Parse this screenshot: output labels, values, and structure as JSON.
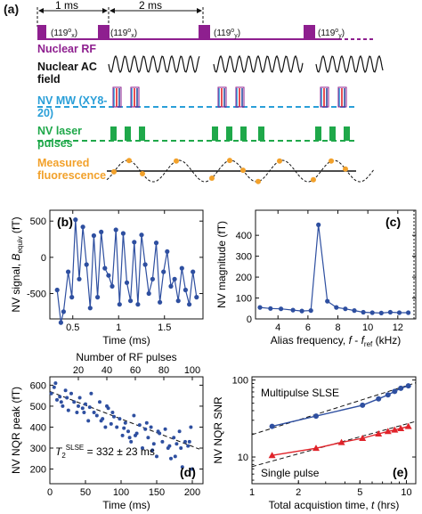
{
  "panel_a": {
    "label": "(a)",
    "timing": {
      "left": "1 ms",
      "right": "2 ms"
    },
    "pulse_tag": "(119",
    "pulse_tag_sub_x": "x",
    "pulse_tag_sub_y": "y",
    "pulse_tag_deg": "o",
    "rows": [
      {
        "label": "Nuclear RF",
        "color": "#8e1f8f"
      },
      {
        "label": "Nuclear AC field",
        "color": "#111111"
      },
      {
        "label": "NV MW (XY8-20)",
        "color": "#2a9fd8"
      },
      {
        "label": "NV laser pulses",
        "color": "#1fa84a"
      },
      {
        "label": "Measured fluorescence",
        "color": "#f2a12b"
      }
    ]
  },
  "chart_data": [
    {
      "id": "b",
      "type": "line",
      "panel_label": "(b)",
      "xlabel": "Time (ms)",
      "ylabel": "NV signal, B_equiv (fT)",
      "xlim": [
        0.25,
        1.92
      ],
      "ylim": [
        -850,
        650
      ],
      "xticks": [
        0.5,
        1,
        1.5
      ],
      "xtick_labels": [
        "0.5",
        "1",
        "1.5"
      ],
      "yticks": [
        -500,
        0,
        500
      ],
      "ytick_labels": [
        "-500",
        "0",
        "500"
      ],
      "color": "#2e4fa0",
      "x": [
        0.33,
        0.37,
        0.4,
        0.45,
        0.49,
        0.53,
        0.57,
        0.61,
        0.65,
        0.69,
        0.73,
        0.77,
        0.81,
        0.85,
        0.89,
        0.93,
        0.97,
        1.01,
        1.05,
        1.09,
        1.13,
        1.17,
        1.21,
        1.25,
        1.29,
        1.33,
        1.37,
        1.41,
        1.45,
        1.49,
        1.53,
        1.57,
        1.61,
        1.65,
        1.69,
        1.73,
        1.77,
        1.81,
        1.85
      ],
      "y": [
        -450,
        -900,
        -750,
        -200,
        -550,
        520,
        -300,
        420,
        -100,
        -700,
        300,
        -550,
        350,
        -150,
        -250,
        -400,
        380,
        -650,
        330,
        -350,
        -600,
        210,
        -650,
        310,
        -100,
        -500,
        -300,
        200,
        -620,
        -200,
        80,
        -400,
        -300,
        -600,
        -150,
        -450,
        -650,
        -200,
        -550
      ]
    },
    {
      "id": "c",
      "type": "line",
      "panel_label": "(c)",
      "xlabel": "Alias frequency, f - f_ref (kHz)",
      "ylabel": "NV magnitude (fT)",
      "xlim": [
        2.5,
        13.2
      ],
      "ylim": [
        0,
        520
      ],
      "xticks": [
        4,
        6,
        8,
        10,
        12
      ],
      "xtick_labels": [
        "4",
        "6",
        "8",
        "10",
        "12"
      ],
      "yticks": [
        0,
        100,
        200,
        300,
        400
      ],
      "ytick_labels": [
        "0",
        "100",
        "200",
        "300",
        "400"
      ],
      "color": "#2e4fa0",
      "x": [
        2.8,
        3.5,
        4.2,
        5.0,
        5.6,
        6.2,
        6.7,
        7.3,
        7.9,
        8.5,
        9.1,
        9.7,
        10.3,
        10.9,
        11.5,
        12.1,
        12.7
      ],
      "y": [
        55,
        50,
        48,
        42,
        38,
        40,
        450,
        85,
        55,
        48,
        40,
        32,
        30,
        28,
        32,
        30,
        30
      ]
    },
    {
      "id": "d",
      "type": "scatter",
      "panel_label": "(d)",
      "xlabel": "Time (ms)",
      "ylabel": "NV NQR peak (fT)",
      "top_xlabel": "Number of RF pulses",
      "xlim": [
        0,
        215
      ],
      "ylim": [
        130,
        640
      ],
      "xticks": [
        0,
        50,
        100,
        150,
        200
      ],
      "xtick_labels": [
        "0",
        "50",
        "100",
        "150",
        "200"
      ],
      "top_xticks": [
        20,
        40,
        60,
        80,
        100
      ],
      "yticks": [
        200,
        300,
        400,
        500,
        600
      ],
      "ytick_labels": [
        "200",
        "300",
        "400",
        "500",
        "600"
      ],
      "annotation": "T2SLSE = 332 ± 23 ms",
      "annotation_main": "= 332 ± 23 ms",
      "annotation_symbol": "T",
      "annotation_sub": "2",
      "annotation_sup": "SLSE",
      "color": "#2e4fa0",
      "fit": {
        "x": [
          0,
          210
        ],
        "y": [
          570,
          295
        ]
      },
      "x": [
        2,
        6,
        10,
        14,
        18,
        22,
        26,
        30,
        34,
        38,
        42,
        46,
        50,
        54,
        58,
        62,
        66,
        70,
        74,
        78,
        82,
        86,
        90,
        94,
        98,
        102,
        106,
        110,
        114,
        118,
        122,
        126,
        130,
        134,
        138,
        142,
        146,
        150,
        154,
        158,
        162,
        166,
        170,
        174,
        178,
        182,
        186,
        190,
        194,
        198,
        8,
        24,
        40,
        56,
        72,
        88,
        104,
        120,
        136,
        152,
        168,
        184,
        200,
        16,
        48,
        80,
        112,
        144,
        176,
        196
      ],
      "y": [
        560,
        590,
        530,
        545,
        500,
        575,
        480,
        560,
        520,
        470,
        540,
        490,
        510,
        430,
        560,
        470,
        455,
        520,
        440,
        400,
        490,
        415,
        450,
        400,
        440,
        360,
        420,
        380,
        330,
        455,
        370,
        410,
        300,
        390,
        350,
        400,
        320,
        260,
        370,
        330,
        390,
        300,
        250,
        350,
        320,
        380,
        210,
        330,
        310,
        400,
        610,
        540,
        500,
        495,
        430,
        470,
        395,
        360,
        420,
        380,
        310,
        300,
        200,
        520,
        470,
        500,
        350,
        290,
        260,
        330
      ]
    },
    {
      "id": "e",
      "type": "line",
      "panel_label": "(e)",
      "xlabel": "Total acquistion time, t (hrs)",
      "ylabel": "NV NQR SNR",
      "xscale": "log",
      "yscale": "log",
      "xlim": [
        1,
        11.5
      ],
      "ylim": [
        4.5,
        110
      ],
      "xticks": [
        1,
        2,
        5,
        10
      ],
      "xtick_labels": [
        "1",
        "2",
        "5",
        "10"
      ],
      "yticks": [
        10,
        100
      ],
      "ytick_labels": [
        "10",
        "100"
      ],
      "series": [
        {
          "name": "Multipulse SLSE",
          "color": "#2e4fa0",
          "marker": "circle",
          "x": [
            1.35,
            2.6,
            5.2,
            6.6,
            7.6,
            8.4,
            9.2,
            10.3
          ],
          "y": [
            25,
            34,
            47,
            57,
            64,
            71,
            78,
            84
          ]
        },
        {
          "name": "Single pulse",
          "color": "#e0232a",
          "marker": "triangle",
          "x": [
            1.35,
            2.6,
            3.8,
            5.2,
            6.6,
            7.6,
            8.4,
            9.2,
            10.3
          ],
          "y": [
            10.5,
            13,
            15.5,
            17.5,
            20,
            21.5,
            22.5,
            23.5,
            25
          ]
        }
      ],
      "fits": [
        {
          "x": [
            1,
            11.5
          ],
          "y": [
            19.5,
            92
          ]
        },
        {
          "x": [
            1,
            11.5
          ],
          "y": [
            7.5,
            29
          ]
        }
      ]
    }
  ]
}
